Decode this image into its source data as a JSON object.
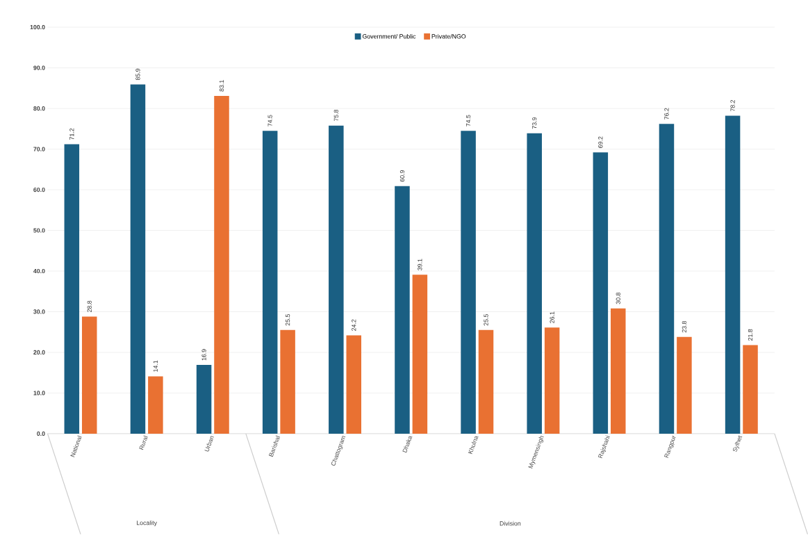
{
  "chart_data": {
    "type": "bar",
    "categories": [
      "National",
      "Rural",
      "Urban",
      "Barishal",
      "Chattogram",
      "Dhaka",
      "Khulna",
      "Mymensingh",
      "Rajshahi",
      "Rangpur",
      "Sylhet"
    ],
    "series": [
      {
        "name": "Government/ Public",
        "color": "#1a5f83",
        "values": [
          71.2,
          85.9,
          16.9,
          74.5,
          75.8,
          60.9,
          74.5,
          73.9,
          69.2,
          76.2,
          78.2
        ]
      },
      {
        "name": "Private/NGO",
        "color": "#e97132",
        "values": [
          28.8,
          14.1,
          83.1,
          25.5,
          24.2,
          39.1,
          25.5,
          26.1,
          30.8,
          23.8,
          21.8
        ]
      }
    ],
    "ylim": [
      0,
      100
    ],
    "yticks": [
      {
        "value": 0,
        "label": "0.0"
      },
      {
        "value": 10,
        "label": "10.0"
      },
      {
        "value": 20,
        "label": "20.0"
      },
      {
        "value": 30,
        "label": "30.0"
      },
      {
        "value": 40,
        "label": "40.0"
      },
      {
        "value": 50,
        "label": "50.0"
      },
      {
        "value": 60,
        "label": "60.0"
      },
      {
        "value": 70,
        "label": "70.0"
      },
      {
        "value": 80,
        "label": "80.0"
      },
      {
        "value": 90,
        "label": "90.0"
      },
      {
        "value": 100,
        "label": "100.0"
      }
    ],
    "grid": "y",
    "legend": "top",
    "data_labels": true,
    "annotations": [
      "Locality",
      "Division"
    ]
  }
}
